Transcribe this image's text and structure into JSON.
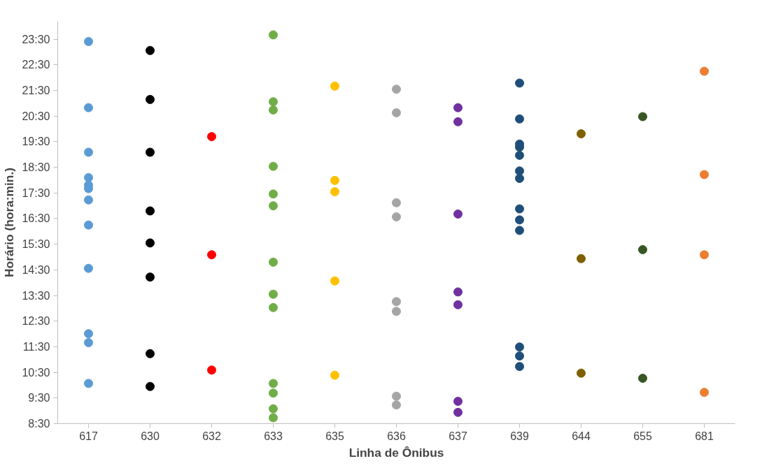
{
  "chart_data": {
    "type": "scatter",
    "xlabel": "Linha de Ônibus",
    "ylabel": "Horário (hora:min.)",
    "categories": [
      "617",
      "630",
      "632",
      "633",
      "635",
      "636",
      "637",
      "639",
      "644",
      "655",
      "681"
    ],
    "ylim": [
      8.5,
      24.2
    ],
    "yticks": [
      {
        "value": 8.5,
        "label": "8:30"
      },
      {
        "value": 9.5,
        "label": "9:30"
      },
      {
        "value": 10.5,
        "label": "10:30"
      },
      {
        "value": 11.5,
        "label": "11:30"
      },
      {
        "value": 12.5,
        "label": "12:30"
      },
      {
        "value": 13.5,
        "label": "13:30"
      },
      {
        "value": 14.5,
        "label": "14:30"
      },
      {
        "value": 15.5,
        "label": "15:30"
      },
      {
        "value": 16.5,
        "label": "16:30"
      },
      {
        "value": 17.5,
        "label": "17:30"
      },
      {
        "value": 18.5,
        "label": "18:30"
      },
      {
        "value": 19.5,
        "label": "19:30"
      },
      {
        "value": 20.5,
        "label": "20:30"
      },
      {
        "value": 21.5,
        "label": "21:30"
      },
      {
        "value": 22.5,
        "label": "22:30"
      },
      {
        "value": 23.5,
        "label": "23:30"
      }
    ],
    "grid": false,
    "marker": "circle",
    "series": [
      {
        "color": "#5b9bd5",
        "x": [
          "617",
          "617",
          "617",
          "617",
          "617",
          "617",
          "617",
          "617",
          "617",
          "617",
          "617",
          "617"
        ],
        "values": [
          23.41,
          20.83,
          19.09,
          18.1,
          17.81,
          17.67,
          17.23,
          16.25,
          14.56,
          12.01,
          11.66,
          10.07
        ]
      },
      {
        "color": "#000000",
        "x": [
          "630",
          "630",
          "630",
          "630",
          "630",
          "630",
          "630",
          "630"
        ],
        "values": [
          23.06,
          21.15,
          19.09,
          16.8,
          15.55,
          14.22,
          11.23,
          9.95
        ]
      },
      {
        "color": "#ff0000",
        "x": [
          "632",
          "632",
          "632"
        ],
        "values": [
          19.7,
          15.09,
          10.59
        ]
      },
      {
        "color": "#70ad47",
        "x": [
          "633",
          "633",
          "633",
          "633",
          "633",
          "633",
          "633",
          "633",
          "633",
          "633",
          "633",
          "633",
          "633"
        ],
        "values": [
          23.67,
          21.06,
          20.74,
          18.54,
          17.46,
          17.0,
          14.8,
          13.55,
          13.03,
          10.07,
          9.69,
          9.08,
          8.73
        ]
      },
      {
        "color": "#ffc000",
        "x": [
          "635",
          "635",
          "635",
          "635",
          "635"
        ],
        "values": [
          21.67,
          17.99,
          17.55,
          14.07,
          10.39
        ]
      },
      {
        "color": "#a5a5a5",
        "x": [
          "636",
          "636",
          "636",
          "636",
          "636",
          "636",
          "636",
          "636"
        ],
        "values": [
          21.55,
          20.63,
          17.12,
          16.57,
          13.26,
          12.88,
          9.57,
          9.23
        ]
      },
      {
        "color": "#7030a0",
        "x": [
          "637",
          "637",
          "637",
          "637",
          "637",
          "637",
          "637"
        ],
        "values": [
          20.83,
          20.28,
          16.68,
          13.64,
          13.14,
          9.37,
          8.94
        ]
      },
      {
        "color": "#1f4e79",
        "x": [
          "639",
          "639",
          "639",
          "639",
          "639",
          "639",
          "639",
          "639",
          "639",
          "639",
          "639",
          "639",
          "639"
        ],
        "values": [
          21.79,
          20.39,
          19.41,
          19.29,
          18.97,
          18.36,
          18.07,
          16.88,
          16.45,
          16.04,
          11.49,
          11.14,
          10.73
        ]
      },
      {
        "color": "#7f6000",
        "x": [
          "644",
          "644",
          "644"
        ],
        "values": [
          19.81,
          14.94,
          10.47
        ]
      },
      {
        "color": "#375623",
        "x": [
          "655",
          "655",
          "655"
        ],
        "values": [
          20.48,
          15.29,
          10.27
        ]
      },
      {
        "color": "#ed7d31",
        "x": [
          "681",
          "681",
          "681",
          "681"
        ],
        "values": [
          22.25,
          18.22,
          15.09,
          9.72
        ]
      }
    ]
  }
}
